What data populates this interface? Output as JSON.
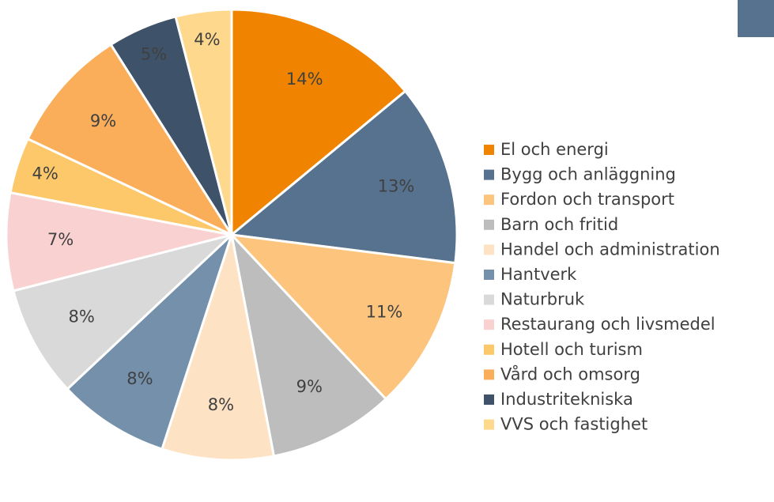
{
  "chart_data": {
    "type": "pie",
    "categories": [
      "El och energi",
      "Bygg och anläggning",
      "Fordon och transport",
      "Barn och fritid",
      "Handel och administration",
      "Hantverk",
      "Naturbruk",
      "Restaurang och livsmedel",
      "Hotell och turism",
      "Vård och omsorg",
      "Industritekniska",
      "VVS och fastighet"
    ],
    "values": [
      14,
      13,
      11,
      9,
      8,
      8,
      8,
      7,
      4,
      9,
      5,
      4
    ],
    "value_labels": [
      "14%",
      "13%",
      "11%",
      "9%",
      "8%",
      "8%",
      "8%",
      "7%",
      "4%",
      "9%",
      "5%",
      "4%"
    ],
    "colors": [
      "#f08400",
      "#56728e",
      "#fdc47d",
      "#bdbdbd",
      "#fde2c4",
      "#7490ab",
      "#d9d9d9",
      "#f9d1d0",
      "#fdc86a",
      "#fbae5a",
      "#3e5369",
      "#fdd88d"
    ],
    "legend": "right"
  }
}
